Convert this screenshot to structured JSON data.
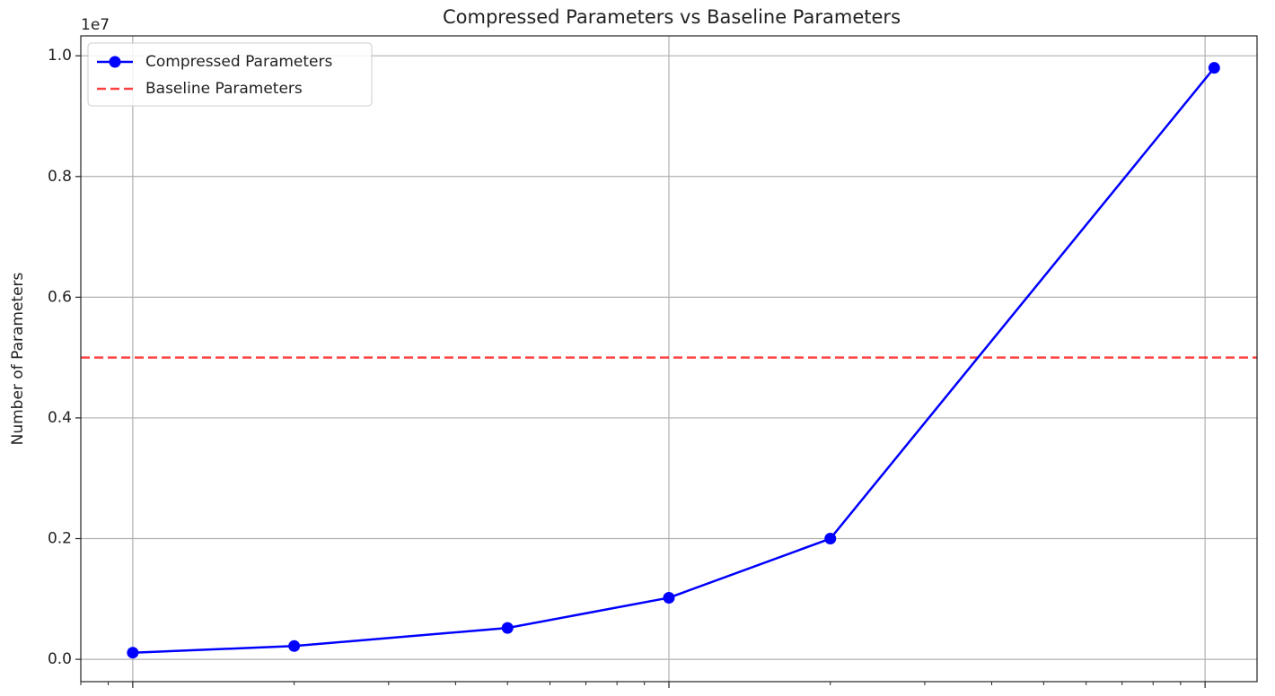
{
  "chart_data": {
    "type": "line",
    "title": "Compressed Parameters vs Baseline Parameters",
    "y_label": "Number of Parameters",
    "y_offset_label": "1e7",
    "x_scale": "log",
    "x": [
      1,
      2,
      5,
      10,
      20,
      104
    ],
    "series": [
      {
        "name": "Compressed Parameters",
        "color": "#0000ff",
        "marker": "circle",
        "values": [
          110000,
          220000,
          520000,
          1020000,
          2000000,
          9800000
        ]
      }
    ],
    "hlines": [
      {
        "name": "Baseline Parameters",
        "color": "#ff0000",
        "style": "dashed",
        "value": 5000000
      }
    ],
    "xlim": [
      0.8,
      125
    ],
    "xticks": [
      1,
      10,
      100
    ],
    "ylim": [
      -370000,
      10330000
    ],
    "yticks": [
      {
        "value": 0,
        "label": "0.0"
      },
      {
        "value": 2000000,
        "label": "0.2"
      },
      {
        "value": 4000000,
        "label": "0.4"
      },
      {
        "value": 6000000,
        "label": "0.6"
      },
      {
        "value": 8000000,
        "label": "0.8"
      },
      {
        "value": 10000000,
        "label": "1.0"
      }
    ],
    "grid": true,
    "legend": "upper left"
  }
}
